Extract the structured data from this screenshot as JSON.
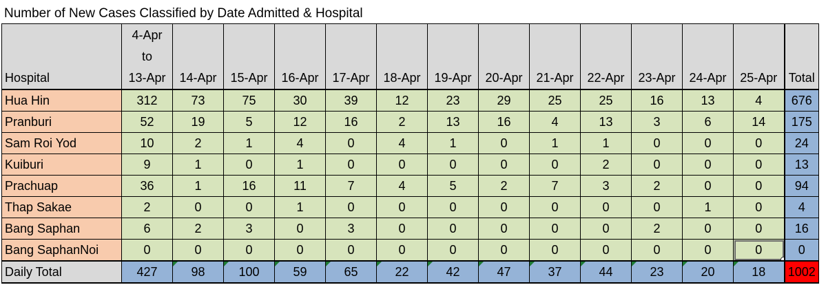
{
  "title": "Number of New Cases Classified by Date Admitted & Hospital",
  "header": {
    "hospital": "Hospital",
    "range": [
      "4-Apr",
      "to",
      "13-Apr"
    ],
    "dates": [
      "14-Apr",
      "15-Apr",
      "16-Apr",
      "17-Apr",
      "18-Apr",
      "19-Apr",
      "20-Apr",
      "21-Apr",
      "22-Apr",
      "23-Apr",
      "24-Apr",
      "25-Apr"
    ],
    "total": "Total"
  },
  "rows": [
    {
      "name": "Hua Hin",
      "values": [
        "312",
        "73",
        "75",
        "30",
        "39",
        "12",
        "23",
        "29",
        "25",
        "25",
        "16",
        "13",
        "4"
      ],
      "total": "676"
    },
    {
      "name": "Pranburi",
      "values": [
        "52",
        "19",
        "5",
        "12",
        "16",
        "2",
        "13",
        "16",
        "4",
        "13",
        "3",
        "6",
        "14"
      ],
      "total": "175"
    },
    {
      "name": "Sam Roi Yod",
      "values": [
        "10",
        "2",
        "1",
        "4",
        "0",
        "4",
        "1",
        "0",
        "1",
        "1",
        "0",
        "0",
        "0"
      ],
      "total": "24"
    },
    {
      "name": "Kuiburi",
      "values": [
        "9",
        "1",
        "0",
        "1",
        "0",
        "0",
        "0",
        "0",
        "0",
        "2",
        "0",
        "0",
        "0"
      ],
      "total": "13"
    },
    {
      "name": "Prachuap",
      "values": [
        "36",
        "1",
        "16",
        "11",
        "7",
        "4",
        "5",
        "2",
        "7",
        "3",
        "2",
        "0",
        "0"
      ],
      "total": "94"
    },
    {
      "name": "Thap Sakae",
      "values": [
        "2",
        "0",
        "0",
        "1",
        "0",
        "0",
        "0",
        "0",
        "0",
        "0",
        "0",
        "1",
        "0"
      ],
      "total": "4"
    },
    {
      "name": "Bang Saphan",
      "values": [
        "6",
        "2",
        "3",
        "0",
        "3",
        "0",
        "0",
        "0",
        "0",
        "0",
        "2",
        "0",
        "0"
      ],
      "total": "16"
    },
    {
      "name": "Bang SaphanNoi",
      "values": [
        "0",
        "0",
        "0",
        "0",
        "0",
        "0",
        "0",
        "0",
        "0",
        "0",
        "0",
        "0",
        "0"
      ],
      "total": "0"
    }
  ],
  "daily": {
    "label": "Daily Total",
    "values": [
      "427",
      "98",
      "100",
      "59",
      "65",
      "22",
      "42",
      "47",
      "37",
      "44",
      "23",
      "20",
      "18"
    ],
    "total": "1002"
  },
  "colors": {
    "header_bg": "#d9d9d9",
    "hospital_bg": "#f8cbad",
    "cell_bg": "#d7e4bc",
    "total_bg": "#95b3d7",
    "grand_total_bg": "#ff0000",
    "error_flag": "#1e7b34"
  }
}
